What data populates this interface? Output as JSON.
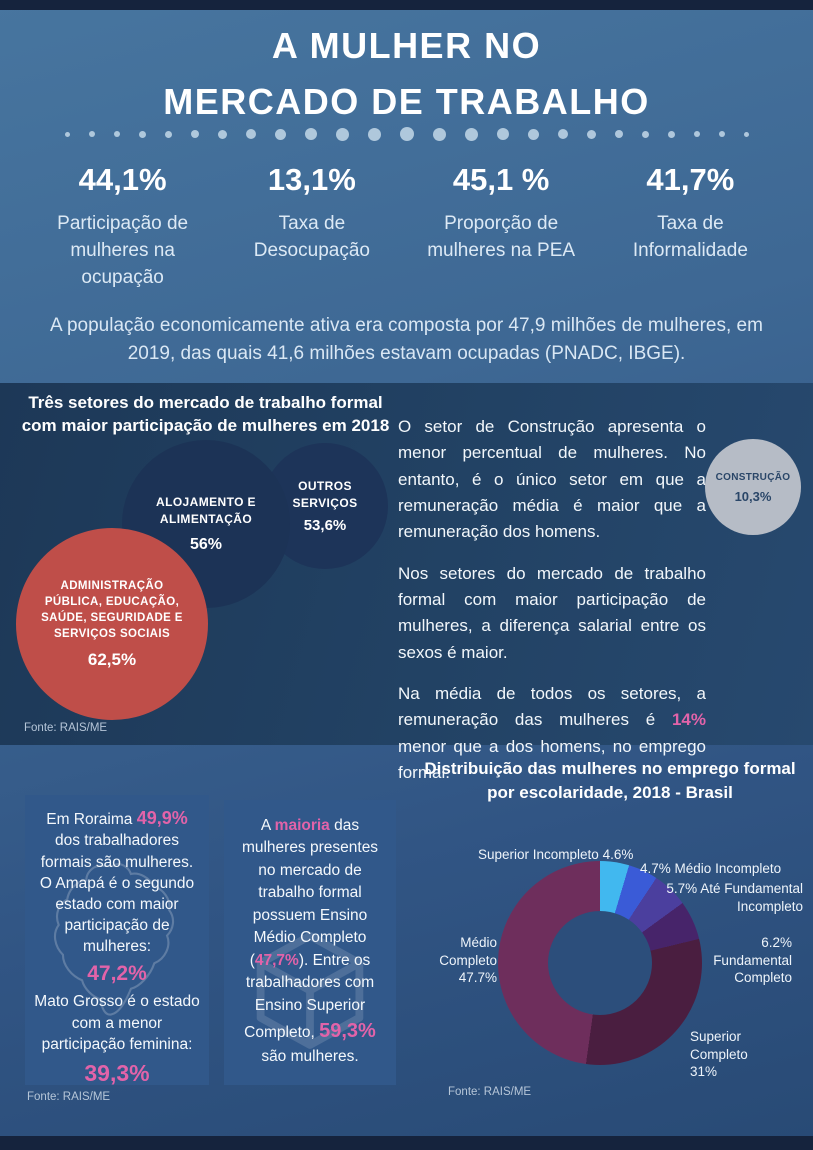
{
  "header": {
    "title_line1": "A MULHER NO",
    "title_line2": "MERCADO DE TRABALHO"
  },
  "theme": {
    "accent_pink": "#e263a9",
    "dark_bar": "#15233d",
    "band_blue": "#1d3857"
  },
  "stats": [
    {
      "value": "44,1%",
      "label": "Participação de mulheres na ocupação"
    },
    {
      "value": "13,1%",
      "label": "Taxa de Desocupação"
    },
    {
      "value": "45,1 %",
      "label": "Proporção de mulheres na PEA"
    },
    {
      "value": "41,7%",
      "label": "Taxa de Informalidade"
    }
  ],
  "intro": "A população economicamente ativa era composta por 47,9 milhões de mulheres, em 2019, das quais 41,6 milhões estavam ocupadas (PNADC, IBGE).",
  "sectors": {
    "p1": "O setor de Construção apresenta o menor percentual de mulheres. No entanto, é o único setor em que a remuneração média é maior que a remuneração dos homens.",
    "p2": "Nos setores do mercado de trabalho formal com maior participação de mulheres, a diferença salarial entre os sexos é maior.",
    "p3_before": "Na média de todos os setores, a remuneração das mulheres é ",
    "p3_highlight": "14%",
    "p3_after": " menor que a dos homens, no emprego formal."
  },
  "roraima_card": {
    "t1": "Em Roraima ",
    "h1": "49,9%",
    "t2": " dos trabalhadores formais são mulheres. O Amapá é o segundo estado com maior participação de mulheres:",
    "h2": "47,2%",
    "t3": "Mato Grosso é o estado com a menor participação feminina:",
    "h3": "39,3%",
    "source": "Fonte: RAIS/ME"
  },
  "education_card": {
    "t1": "A ",
    "h1": "maioria",
    "t2": " das mulheres presentes no mercado de trabalho formal possuem Ensino Médio Completo (",
    "h2": "47,7%",
    "t3": "). Entre os trabalhadores com Ensino Superior Completo, ",
    "h3": "59,3%",
    "t4": " são mulheres."
  },
  "chart_data": [
    {
      "type": "bubble",
      "title": "Três setores do mercado de trabalho formal com maior participação de mulheres em 2018",
      "source": "Fonte: RAIS/ME",
      "bubbles": [
        {
          "label": "ADMINISTRAÇÃO PÚBLICA, EDUCAÇÃO, SAÚDE, SEGURIDADE E SERVIÇOS SOCIAIS",
          "value": 62.5,
          "value_label": "62,5%",
          "color": "#bf4e49"
        },
        {
          "label": "ALOJAMENTO E ALIMENTAÇÃO",
          "value": 56,
          "value_label": "56%",
          "color": "#1c3356"
        },
        {
          "label": "OUTROS SERVIÇOS",
          "value": 53.6,
          "value_label": "53,6%",
          "color": "#1d3459"
        },
        {
          "label": "CONSTRUÇÃO",
          "value": 10.3,
          "value_label": "10,3%",
          "color": "#b6bcc6"
        }
      ]
    },
    {
      "type": "pie",
      "donut": true,
      "title": "Distribuição das mulheres no emprego formal por escolaridade, 2018 - Brasil",
      "source": "Fonte: RAIS/ME",
      "legend_position": "around",
      "segments": [
        {
          "label": "Superior Incompleto",
          "value": 4.6,
          "value_label": "4.6%",
          "color": "#41b8ef"
        },
        {
          "label": "Médio Incompleto",
          "value": 4.7,
          "value_label": "4.7%",
          "color": "#3a5bd7"
        },
        {
          "label": "Até Fundamental Incompleto",
          "value": 5.7,
          "value_label": "5.7%",
          "color": "#4b3f9e"
        },
        {
          "label": "Fundamental Completo",
          "value": 6.2,
          "value_label": "6.2%",
          "color": "#47246a"
        },
        {
          "label": "Superior Completo",
          "value": 31,
          "value_label": "31%",
          "color": "#4a1e40"
        },
        {
          "label": "Médio Completo",
          "value": 47.7,
          "value_label": "47.7%",
          "color": "#6e2e5c"
        }
      ]
    }
  ]
}
